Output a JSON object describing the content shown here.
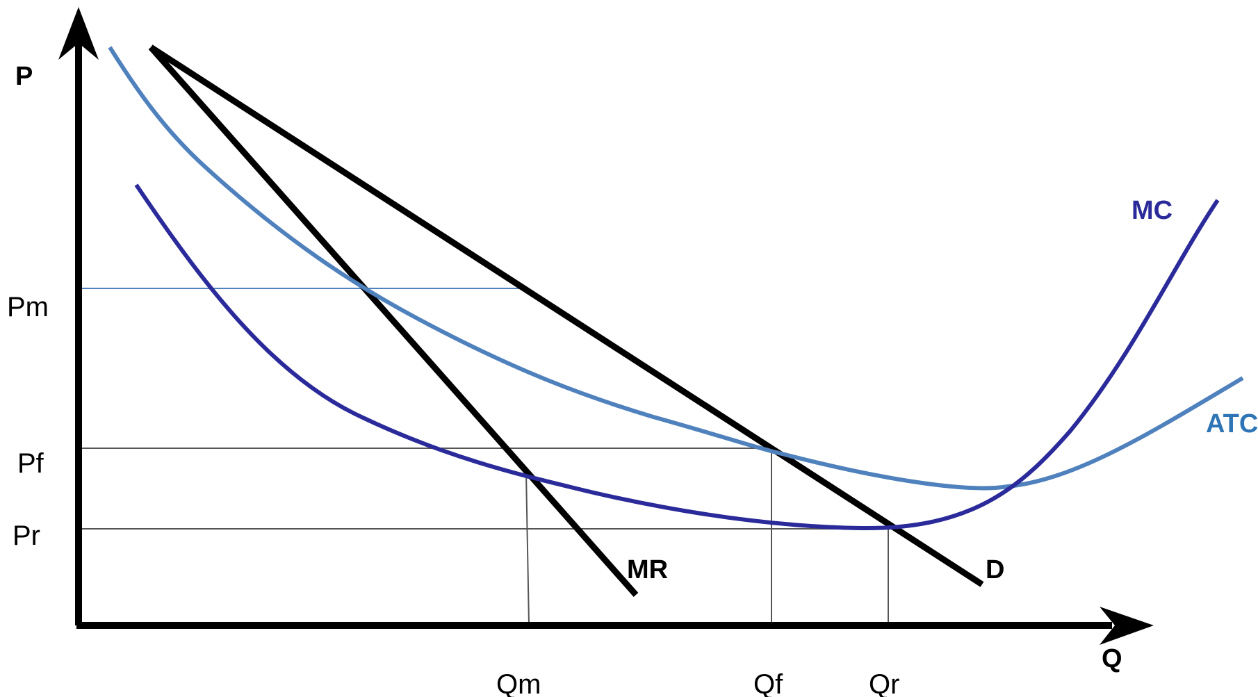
{
  "diagram": {
    "axes": {
      "y_label": "P",
      "x_label": "Q"
    },
    "price_levels": [
      {
        "id": "pm",
        "label": "Pm"
      },
      {
        "id": "pf",
        "label": "Pf"
      },
      {
        "id": "pr",
        "label": "Pr"
      }
    ],
    "quantity_levels": [
      {
        "id": "qm",
        "label": "Qm"
      },
      {
        "id": "qf",
        "label": "Qf"
      },
      {
        "id": "qr",
        "label": "Qr"
      }
    ],
    "curves": {
      "demand": {
        "label": "D",
        "color": "#000000"
      },
      "marginal_revenue": {
        "label": "MR",
        "color": "#000000"
      },
      "marginal_cost": {
        "label": "MC",
        "color": "#2a2a9a"
      },
      "average_total_cost": {
        "label": "ATC",
        "color": "#4f81bd"
      }
    },
    "colors": {
      "axis": "#000000",
      "guide_dark": "#555555",
      "guide_pm": "#4f81bd"
    }
  }
}
